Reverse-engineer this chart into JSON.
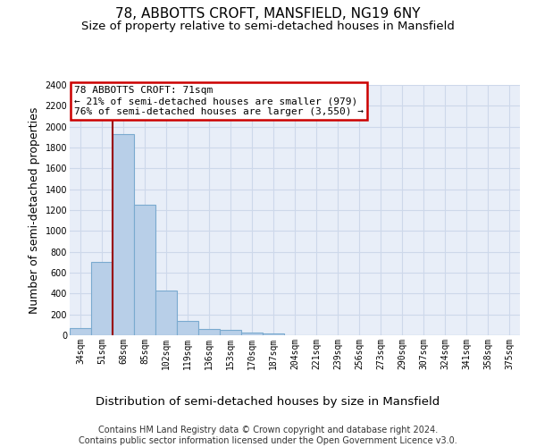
{
  "title": "78, ABBOTTS CROFT, MANSFIELD, NG19 6NY",
  "subtitle": "Size of property relative to semi-detached houses in Mansfield",
  "xlabel": "Distribution of semi-detached houses by size in Mansfield",
  "ylabel": "Number of semi-detached properties",
  "categories": [
    "34sqm",
    "51sqm",
    "68sqm",
    "85sqm",
    "102sqm",
    "119sqm",
    "136sqm",
    "153sqm",
    "170sqm",
    "187sqm",
    "204sqm",
    "221sqm",
    "239sqm",
    "256sqm",
    "273sqm",
    "290sqm",
    "307sqm",
    "324sqm",
    "341sqm",
    "358sqm",
    "375sqm"
  ],
  "values": [
    70,
    700,
    1930,
    1250,
    425,
    140,
    60,
    50,
    30,
    20,
    0,
    0,
    0,
    0,
    0,
    0,
    0,
    0,
    0,
    0,
    0
  ],
  "bar_color": "#b8cfe8",
  "bar_edge_color": "#7aaacf",
  "grid_color": "#cdd8ea",
  "background_color": "#e8eef8",
  "annotation_line1": "78 ABBOTTS CROFT: 71sqm",
  "annotation_line2": "← 21% of semi-detached houses are smaller (979)",
  "annotation_line3": "76% of semi-detached houses are larger (3,550) →",
  "annotation_box_edgecolor": "#cc0000",
  "property_line_index": 2,
  "ylim_max": 2400,
  "yticks": [
    0,
    200,
    400,
    600,
    800,
    1000,
    1200,
    1400,
    1600,
    1800,
    2000,
    2200,
    2400
  ],
  "footer_line1": "Contains HM Land Registry data © Crown copyright and database right 2024.",
  "footer_line2": "Contains public sector information licensed under the Open Government Licence v3.0.",
  "title_fontsize": 11,
  "subtitle_fontsize": 9.5,
  "ylabel_fontsize": 9,
  "xlabel_fontsize": 9.5,
  "tick_fontsize": 7,
  "annotation_fontsize": 8,
  "footer_fontsize": 7
}
